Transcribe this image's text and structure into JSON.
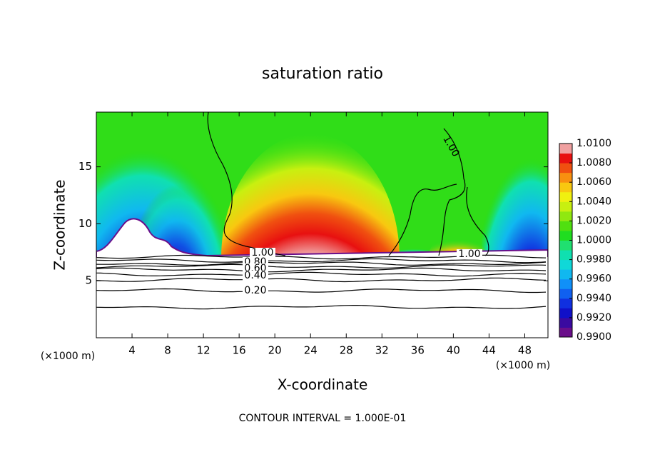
{
  "chart_data": {
    "type": "contour",
    "title": "saturation ratio",
    "x_label": "X-coordinate",
    "y_label": "Z-coordinate",
    "x_unit": "(×1000 m)",
    "y_unit": "(×1000 m)",
    "xlim": [
      0,
      50.6
    ],
    "ylim": [
      0,
      19.8
    ],
    "xticks": [
      4,
      8,
      12,
      16,
      20,
      24,
      28,
      32,
      36,
      40,
      44,
      48
    ],
    "yticks": [
      5,
      10,
      15
    ],
    "colorbar": {
      "lim": [
        0.99,
        1.01
      ],
      "ticks": [
        {
          "value": 0.99,
          "label": "0.9900"
        },
        {
          "value": 0.992,
          "label": "0.9920"
        },
        {
          "value": 0.994,
          "label": "0.9940"
        },
        {
          "value": 0.996,
          "label": "0.9960"
        },
        {
          "value": 0.998,
          "label": "0.9980"
        },
        {
          "value": 1.0,
          "label": "1.0000"
        },
        {
          "value": 1.002,
          "label": "1.0020"
        },
        {
          "value": 1.004,
          "label": "1.0040"
        },
        {
          "value": 1.006,
          "label": "1.0060"
        },
        {
          "value": 1.008,
          "label": "1.0080"
        },
        {
          "value": 1.01,
          "label": "1.0100"
        }
      ],
      "colors": [
        "#6a0e8a",
        "#3a0aa0",
        "#1010c8",
        "#1030e0",
        "#1060f0",
        "#1090f8",
        "#10b8f0",
        "#10d8d8",
        "#10e0b0",
        "#20e070",
        "#20dd20",
        "#50e010",
        "#90e810",
        "#c8f010",
        "#f0f010",
        "#f8c810",
        "#f89010",
        "#f05010",
        "#e81010",
        "#f0a0a0"
      ]
    },
    "contour_labels": [
      {
        "value": 1.0,
        "label": "1.00"
      },
      {
        "value": 1.0,
        "label": "1.00"
      },
      {
        "value": 1.0,
        "label": "1.00"
      },
      {
        "value": 0.8,
        "label": "0.80"
      },
      {
        "value": 0.6,
        "label": "0.60"
      },
      {
        "value": 0.4,
        "label": "0.40"
      },
      {
        "value": 0.2,
        "label": "0.20"
      }
    ],
    "contour_interval_note": "CONTOUR INTERVAL = 1.000E-01"
  }
}
